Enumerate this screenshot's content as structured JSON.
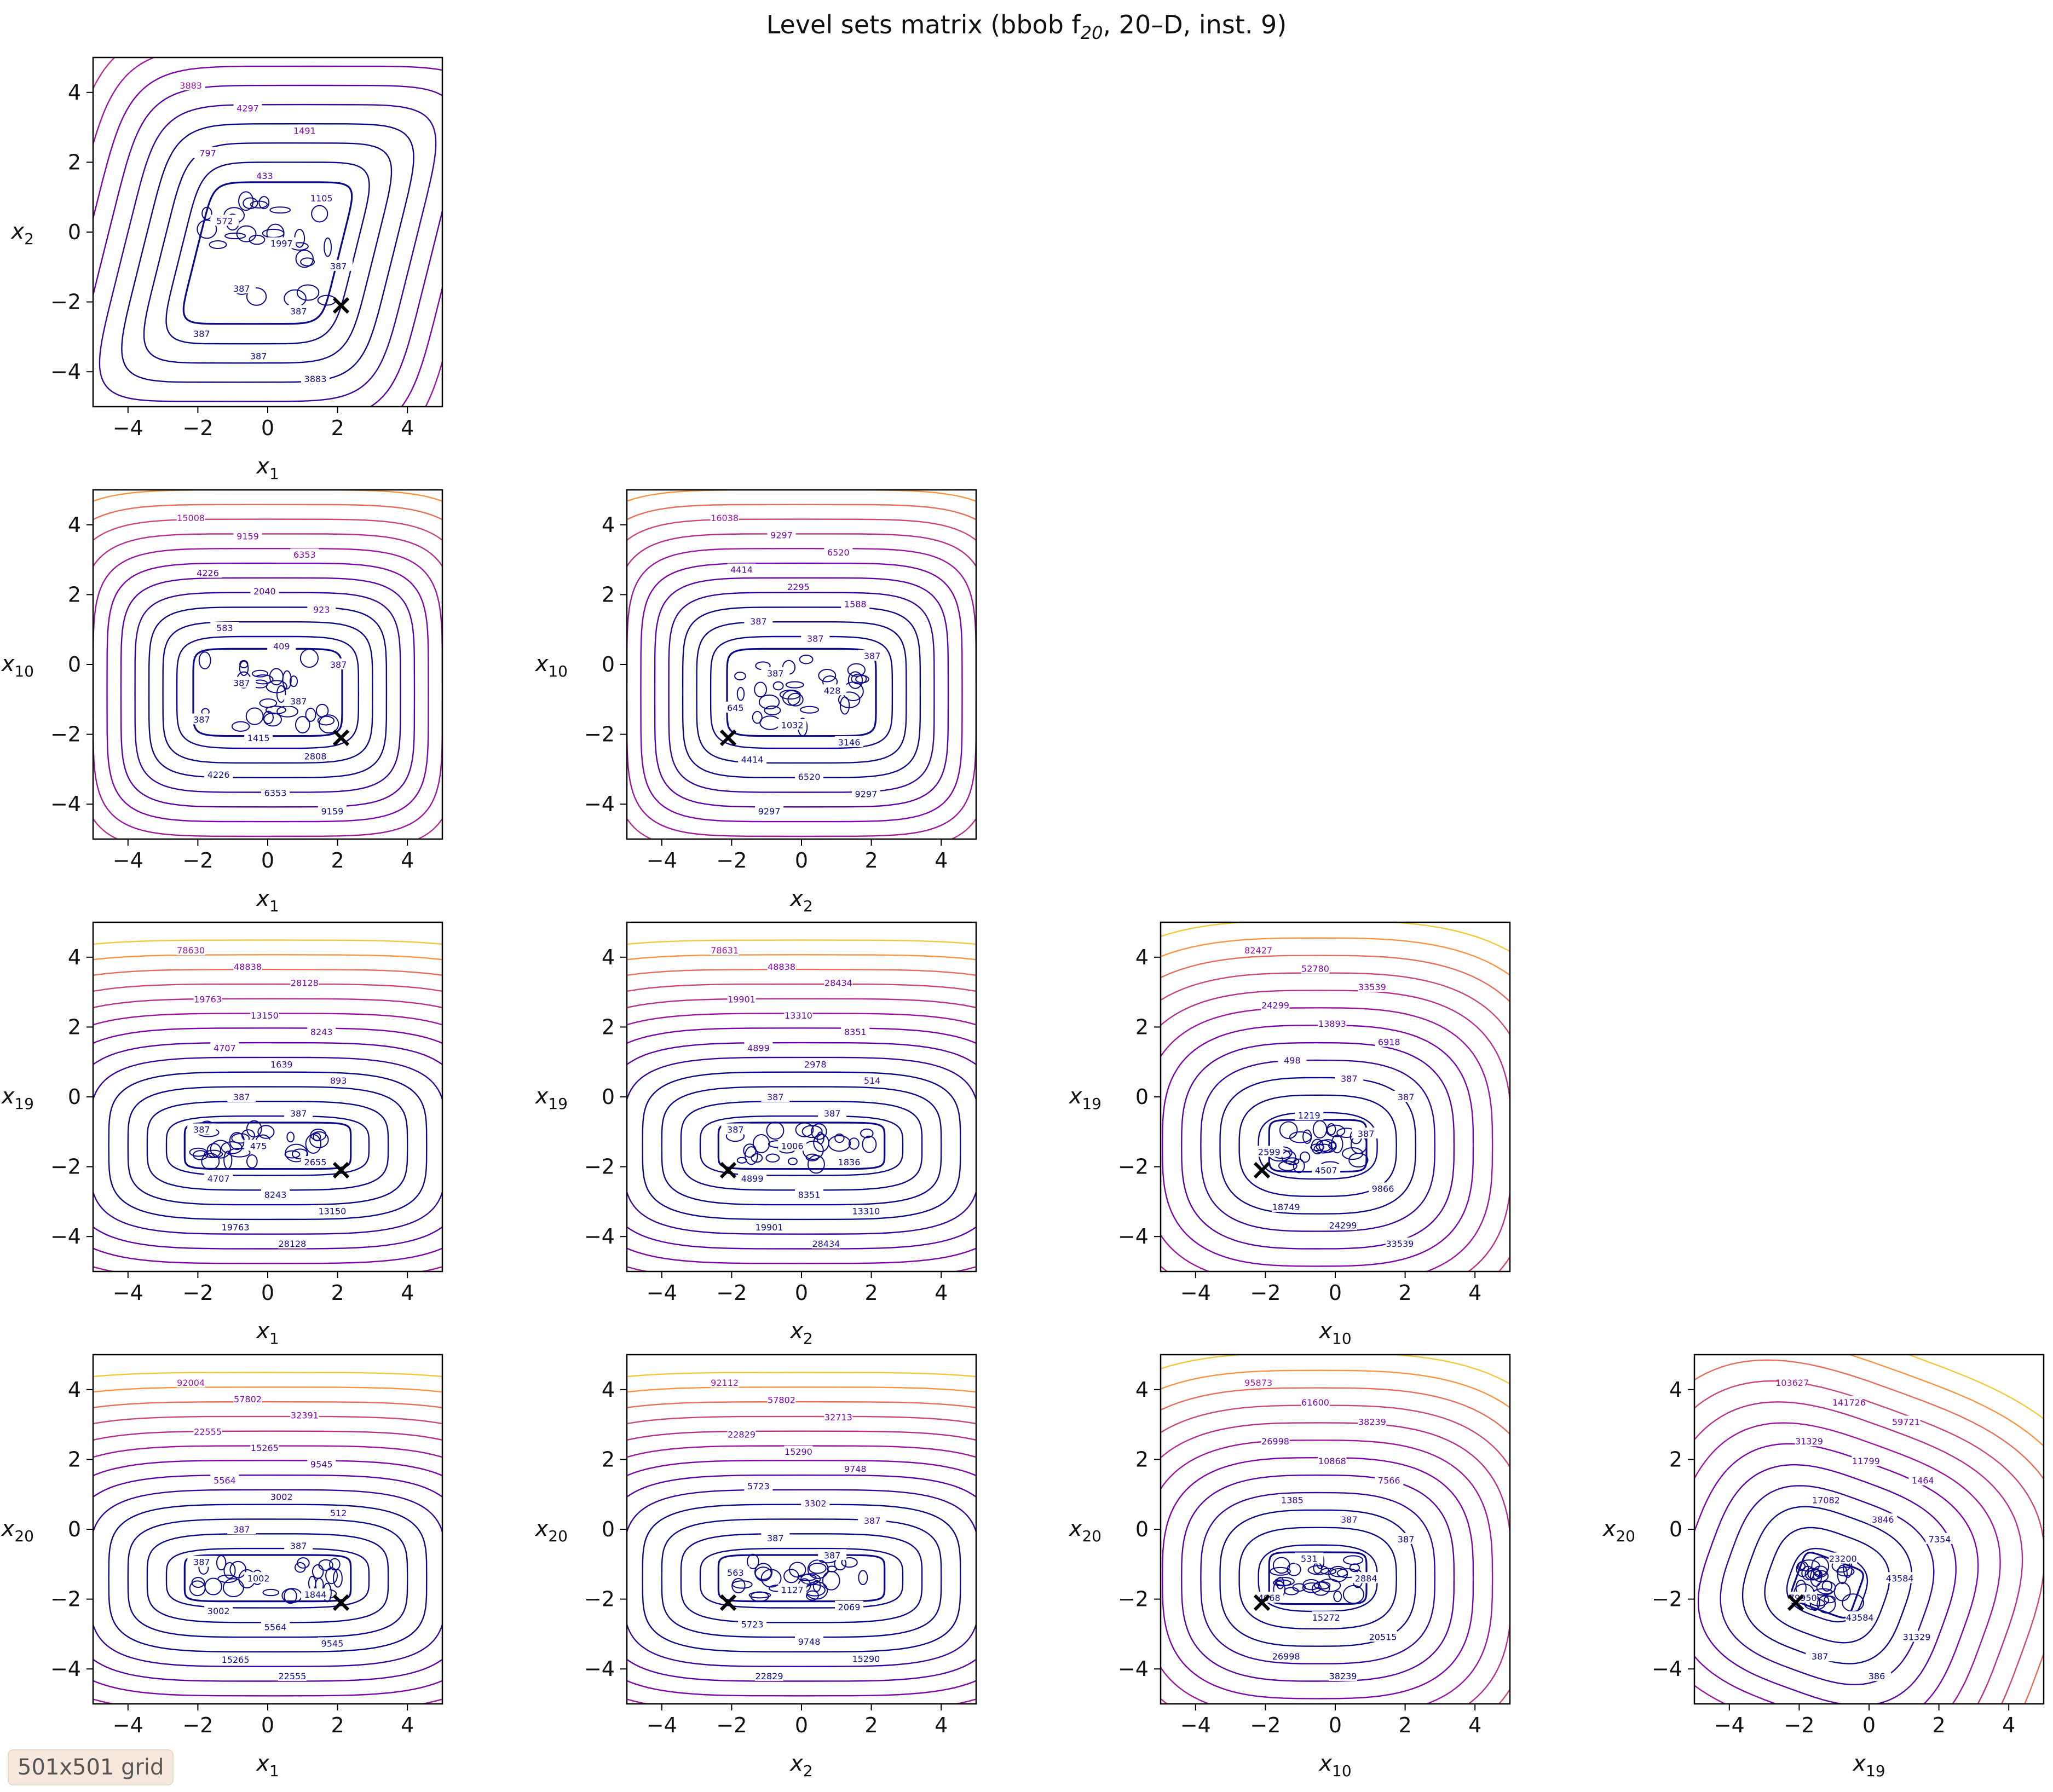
{
  "title_text": "Level sets matrix (bbob f",
  "title_sub": "20",
  "title_rest": ", 20–D, inst. 9)",
  "grid_label": "501x501 grid",
  "colors": {
    "ink": "#000000",
    "low": "#0d0887",
    "mid": "#7e03a8",
    "high": "#cc4778",
    "top": "#f0c93b"
  },
  "chart_data": {
    "type": "contour",
    "x_ticks": [
      "−4",
      "−2",
      "0",
      "2",
      "4"
    ],
    "y_ticks": [
      "4",
      "2",
      "0",
      "−2",
      "−4"
    ],
    "xlim": [
      -5,
      5
    ],
    "ylim": [
      -5,
      5
    ],
    "panels": [
      {
        "row": 0,
        "col": 0,
        "xlabel": "x",
        "xsub": "1",
        "ylabel": "x",
        "ysub": "2",
        "minimum": [
          2.1,
          -2.1
        ],
        "kind": "tilt",
        "labels": [
          "3883",
          "4297",
          "1491",
          "797",
          "433",
          "1105",
          "572",
          "1997",
          "387",
          "387",
          "387",
          "387",
          "387",
          "3883"
        ]
      },
      {
        "row": 1,
        "col": 0,
        "xlabel": "x",
        "xsub": "1",
        "ylabel": "x",
        "ysub": "10",
        "minimum": [
          2.1,
          -2.1
        ],
        "kind": "box",
        "labels": [
          "15008",
          "9159",
          "6353",
          "4226",
          "2040",
          "923",
          "583",
          "409",
          "387",
          "387",
          "387",
          "387",
          "1415",
          "2808",
          "4226",
          "6353",
          "9159"
        ]
      },
      {
        "row": 1,
        "col": 1,
        "xlabel": "x",
        "xsub": "2",
        "ylabel": "x",
        "ysub": "10",
        "minimum": [
          -2.1,
          -2.1
        ],
        "kind": "box",
        "labels": [
          "16038",
          "9297",
          "6520",
          "4414",
          "2295",
          "1588",
          "387",
          "387",
          "387",
          "387",
          "428",
          "645",
          "1032",
          "3146",
          "4414",
          "6520",
          "9297",
          "9297"
        ]
      },
      {
        "row": 2,
        "col": 0,
        "xlabel": "x",
        "xsub": "1",
        "ylabel": "x",
        "ysub": "19",
        "minimum": [
          2.1,
          -2.1
        ],
        "kind": "wide",
        "labels": [
          "78630",
          "48838",
          "28128",
          "19763",
          "13150",
          "8243",
          "4707",
          "1639",
          "893",
          "387",
          "387",
          "387",
          "475",
          "2655",
          "4707",
          "8243",
          "13150",
          "19763",
          "28128"
        ]
      },
      {
        "row": 2,
        "col": 1,
        "xlabel": "x",
        "xsub": "2",
        "ylabel": "x",
        "ysub": "19",
        "minimum": [
          -2.1,
          -2.1
        ],
        "kind": "wide",
        "labels": [
          "78631",
          "48838",
          "28434",
          "19901",
          "13310",
          "8351",
          "4899",
          "2978",
          "514",
          "387",
          "387",
          "387",
          "1006",
          "1836",
          "4899",
          "8351",
          "13310",
          "19901",
          "28434"
        ]
      },
      {
        "row": 2,
        "col": 2,
        "xlabel": "x",
        "xsub": "10",
        "ylabel": "x",
        "ysub": "19",
        "minimum": [
          -2.1,
          -2.1
        ],
        "kind": "round",
        "labels": [
          "82427",
          "52780",
          "33539",
          "24299",
          "13893",
          "6918",
          "498",
          "387",
          "387",
          "1219",
          "387",
          "2599",
          "4507",
          "9866",
          "18749",
          "24299",
          "33539"
        ]
      },
      {
        "row": 3,
        "col": 0,
        "xlabel": "x",
        "xsub": "1",
        "ylabel": "x",
        "ysub": "20",
        "minimum": [
          2.1,
          -2.1
        ],
        "kind": "wide",
        "labels": [
          "92004",
          "57802",
          "32391",
          "22555",
          "15265",
          "9545",
          "5564",
          "3002",
          "512",
          "387",
          "387",
          "387",
          "1002",
          "1844",
          "3002",
          "5564",
          "9545",
          "15265",
          "22555"
        ]
      },
      {
        "row": 3,
        "col": 1,
        "xlabel": "x",
        "xsub": "2",
        "ylabel": "x",
        "ysub": "20",
        "minimum": [
          -2.1,
          -2.1
        ],
        "kind": "wide",
        "labels": [
          "92112",
          "57802",
          "32713",
          "22829",
          "15290",
          "9748",
          "5723",
          "3302",
          "387",
          "387",
          "387",
          "563",
          "1127",
          "2069",
          "5723",
          "9748",
          "15290",
          "22829"
        ]
      },
      {
        "row": 3,
        "col": 2,
        "xlabel": "x",
        "xsub": "10",
        "ylabel": "x",
        "ysub": "20",
        "minimum": [
          -2.1,
          -2.1
        ],
        "kind": "round",
        "labels": [
          "95873",
          "61600",
          "38239",
          "26998",
          "10868",
          "7566",
          "1385",
          "387",
          "387",
          "531",
          "2884",
          "4968",
          "15272",
          "20515",
          "26998",
          "38239"
        ]
      },
      {
        "row": 3,
        "col": 3,
        "xlabel": "x",
        "xsub": "19",
        "ylabel": "x",
        "ysub": "20",
        "minimum": [
          -2.1,
          -2.1
        ],
        "kind": "rot",
        "labels": [
          "103627",
          "141726",
          "59721",
          "31329",
          "11799",
          "1464",
          "17082",
          "3846",
          "7354",
          "23200",
          "43584",
          "79950",
          "43584",
          "31329",
          "387",
          "386"
        ]
      }
    ]
  }
}
